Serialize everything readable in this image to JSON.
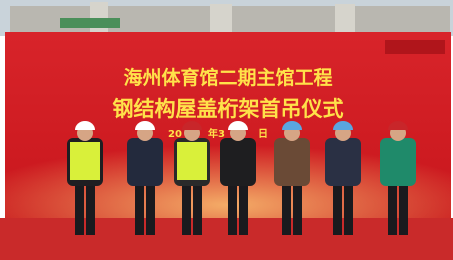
{
  "banner": {
    "title": "海州体育馆二期主馆工程",
    "subtitle": "钢结构屋盖桁架首吊仪式",
    "date_fragments": [
      "20",
      "年3",
      "日"
    ]
  }
}
